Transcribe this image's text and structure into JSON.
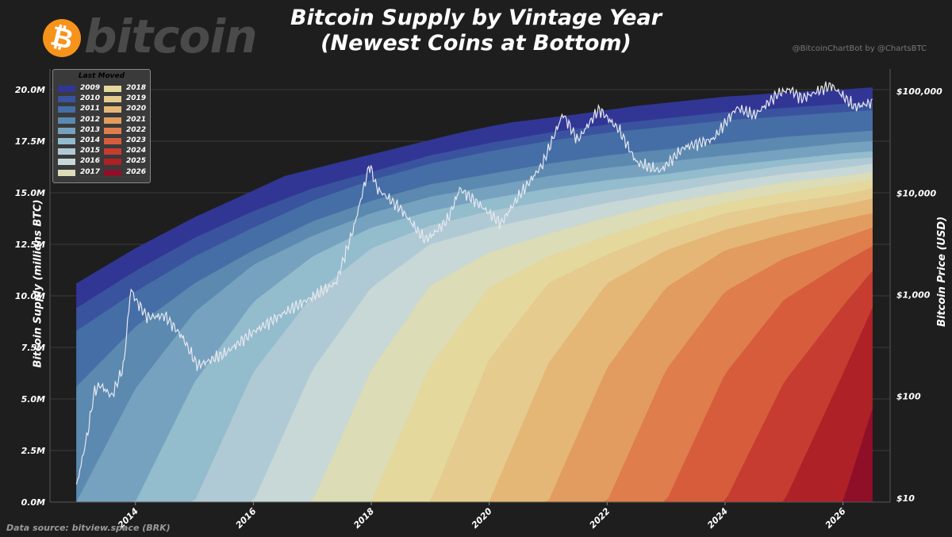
{
  "header": {
    "title_line1": "Bitcoin Supply by Vintage Year",
    "title_line2": "(Newest Coins at Bottom)",
    "logo_text": "bitcoin",
    "logo_symbol": "₿",
    "credit": "@BitcoinChartBot by @ChartsBTC"
  },
  "footer": {
    "source": "Data source: bitview.space (BRK)"
  },
  "colors": {
    "background": "#1e1e1e",
    "brand": "#f7931a",
    "price_line": "#e8e8f0",
    "grid": "#3c3c3c"
  },
  "chart_data": {
    "type": "area",
    "stacked": true,
    "title": "Bitcoin Supply by Vintage Year (Newest Coins at Bottom)",
    "ylabel": "Bitcoin Supply (millions BTC)",
    "y2label": "Bitcoin Price (USD)",
    "xlim": [
      2012.55,
      2026.8
    ],
    "ylim": [
      0,
      21
    ],
    "y2lim_log10": [
      0.96,
      5.22
    ],
    "y2scale": "log",
    "x_ticks": [
      2014,
      2016,
      2018,
      2020,
      2022,
      2024,
      2026
    ],
    "y_ticks": [
      0,
      2.5,
      5,
      7.5,
      10,
      12.5,
      15,
      17.5,
      20
    ],
    "y_tick_labels": [
      "0.0M",
      "2.5M",
      "5.0M",
      "7.5M",
      "10.0M",
      "12.5M",
      "15.0M",
      "17.5M",
      "20.0M"
    ],
    "y2_ticks": [
      10,
      100,
      1000,
      10000,
      100000
    ],
    "y2_tick_labels": [
      "$10",
      "$100",
      "$1,000",
      "$10,000",
      "$100,000"
    ],
    "grid": true,
    "legend": {
      "title": "Last Moved",
      "placement": "top-left"
    },
    "series": [
      {
        "name": "2009",
        "color": "#313695"
      },
      {
        "name": "2010",
        "color": "#3a539e"
      },
      {
        "name": "2011",
        "color": "#456ea6"
      },
      {
        "name": "2012",
        "color": "#5b89af"
      },
      {
        "name": "2013",
        "color": "#76a2bf"
      },
      {
        "name": "2014",
        "color": "#93bccd"
      },
      {
        "name": "2015",
        "color": "#b0cad5"
      },
      {
        "name": "2016",
        "color": "#c8d8d6"
      },
      {
        "name": "2017",
        "color": "#dcdcb7"
      },
      {
        "name": "2018",
        "color": "#e5d89c"
      },
      {
        "name": "2019",
        "color": "#e6cb8f"
      },
      {
        "name": "2020",
        "color": "#e5b777"
      },
      {
        "name": "2021",
        "color": "#e39c5f"
      },
      {
        "name": "2022",
        "color": "#df7d4c"
      },
      {
        "name": "2023",
        "color": "#d65c3c"
      },
      {
        "name": "2024",
        "color": "#c63c30"
      },
      {
        "name": "2025",
        "color": "#ae2126"
      },
      {
        "name": "2026",
        "color": "#8e0f27"
      }
    ],
    "total_supply": {
      "x": [
        2013.0,
        2014.0,
        2015.0,
        2016.0,
        2016.53,
        2017.5,
        2018.5,
        2019.5,
        2020.0,
        2020.37,
        2021.5,
        2022.5,
        2023.5,
        2024.0,
        2024.3,
        2025.0,
        2026.0,
        2026.5
      ],
      "values": [
        10.6,
        12.3,
        13.8,
        15.1,
        15.8,
        16.5,
        17.2,
        17.9,
        18.2,
        18.4,
        18.8,
        19.2,
        19.5,
        19.65,
        19.7,
        19.85,
        20.0,
        20.1
      ]
    },
    "layer_boundaries": {
      "x": [
        2013.0,
        2014.0,
        2015.0,
        2016.0,
        2017.0,
        2018.0,
        2019.0,
        2020.0,
        2021.0,
        2022.0,
        2023.0,
        2024.0,
        2025.0,
        2026.0,
        2026.5
      ],
      "bounds": [
        [
          0,
          0,
          0,
          0,
          0,
          0,
          0,
          0,
          0,
          0,
          0,
          0,
          0,
          0,
          0
        ],
        [
          0,
          0,
          0,
          0,
          0,
          0,
          0,
          0,
          0,
          0,
          0,
          0,
          0,
          0,
          4.5
        ],
        [
          0,
          0,
          0,
          0,
          0,
          0,
          0,
          0,
          0,
          0,
          0,
          0,
          0,
          6.2,
          9.4
        ],
        [
          0,
          0,
          0,
          0,
          0,
          0,
          0,
          0,
          0,
          0,
          0,
          0,
          5.8,
          9.5,
          11.2
        ],
        [
          0,
          0,
          0,
          0,
          0,
          0,
          0,
          0,
          0,
          0,
          0,
          6.2,
          9.8,
          11.6,
          12.4
        ],
        [
          0,
          0,
          0,
          0,
          0,
          0,
          0,
          0,
          0,
          0,
          6.4,
          10.2,
          11.8,
          12.8,
          13.3
        ],
        [
          0,
          0,
          0,
          0,
          0,
          0,
          0,
          0,
          0,
          6.5,
          10.4,
          12.2,
          13.0,
          13.7,
          14.0
        ],
        [
          0,
          0,
          0,
          0,
          0,
          0,
          0,
          0,
          6.7,
          10.6,
          12.2,
          13.2,
          13.9,
          14.4,
          14.7
        ],
        [
          0,
          0,
          0,
          0,
          0,
          0,
          0,
          6.9,
          10.6,
          12.0,
          13.1,
          14.0,
          14.5,
          14.9,
          15.2
        ],
        [
          0,
          0,
          0,
          0,
          0,
          0,
          6.6,
          10.4,
          11.9,
          12.9,
          13.8,
          14.5,
          15.0,
          15.4,
          15.6
        ],
        [
          0,
          0,
          0,
          0,
          0,
          6.4,
          10.5,
          12.1,
          13.0,
          13.8,
          14.5,
          15.0,
          15.5,
          15.8,
          16.0
        ],
        [
          0,
          0,
          0,
          0,
          6.4,
          10.4,
          12.5,
          13.3,
          13.9,
          14.5,
          15.0,
          15.5,
          15.9,
          16.2,
          16.4
        ],
        [
          0,
          0,
          0,
          6.3,
          10.0,
          12.3,
          13.4,
          14.1,
          14.6,
          15.1,
          15.5,
          15.9,
          16.3,
          16.6,
          16.7
        ],
        [
          0,
          0,
          5.8,
          9.7,
          11.9,
          13.3,
          14.1,
          14.7,
          15.2,
          15.6,
          15.9,
          16.3,
          16.6,
          16.9,
          17.0
        ],
        [
          0,
          5.5,
          9.2,
          11.5,
          12.9,
          14.0,
          14.8,
          15.3,
          15.8,
          16.2,
          16.5,
          16.8,
          17.1,
          17.4,
          17.5
        ],
        [
          5.6,
          8.5,
          10.6,
          12.2,
          13.6,
          14.6,
          15.4,
          15.9,
          16.4,
          16.8,
          17.1,
          17.4,
          17.7,
          17.9,
          18.0
        ],
        [
          8.3,
          10.2,
          11.9,
          13.3,
          14.6,
          15.6,
          16.4,
          17.0,
          17.5,
          17.9,
          18.2,
          18.5,
          18.7,
          18.9,
          19.0
        ],
        [
          9.4,
          11.2,
          12.8,
          14.1,
          15.2,
          16.0,
          16.8,
          17.4,
          17.9,
          18.3,
          18.6,
          18.9,
          19.1,
          19.3,
          19.35
        ]
      ]
    },
    "price_series": {
      "name": "Bitcoin Price (USD)",
      "x": [
        2013.0,
        2013.2,
        2013.3,
        2013.4,
        2013.6,
        2013.8,
        2013.92,
        2014.0,
        2014.2,
        2014.5,
        2014.8,
        2015.05,
        2015.5,
        2016.0,
        2016.5,
        2017.0,
        2017.4,
        2017.7,
        2017.97,
        2018.1,
        2018.5,
        2018.9,
        2019.0,
        2019.3,
        2019.5,
        2019.8,
        2020.2,
        2020.5,
        2020.9,
        2021.25,
        2021.5,
        2021.86,
        2022.2,
        2022.5,
        2022.9,
        2023.3,
        2023.8,
        2024.2,
        2024.5,
        2024.9,
        2025.1,
        2025.3,
        2025.8,
        2026.0,
        2026.2,
        2026.5
      ],
      "values": [
        13,
        47,
        110,
        130,
        100,
        200,
        1150,
        900,
        600,
        620,
        380,
        200,
        260,
        430,
        650,
        950,
        1300,
        4500,
        19000,
        11000,
        7000,
        3500,
        3700,
        5500,
        11000,
        8000,
        5000,
        9300,
        19000,
        60000,
        33000,
        67000,
        42000,
        20000,
        16500,
        28000,
        34000,
        69000,
        58000,
        95000,
        105000,
        85000,
        115000,
        90000,
        70000,
        78000
      ]
    }
  }
}
